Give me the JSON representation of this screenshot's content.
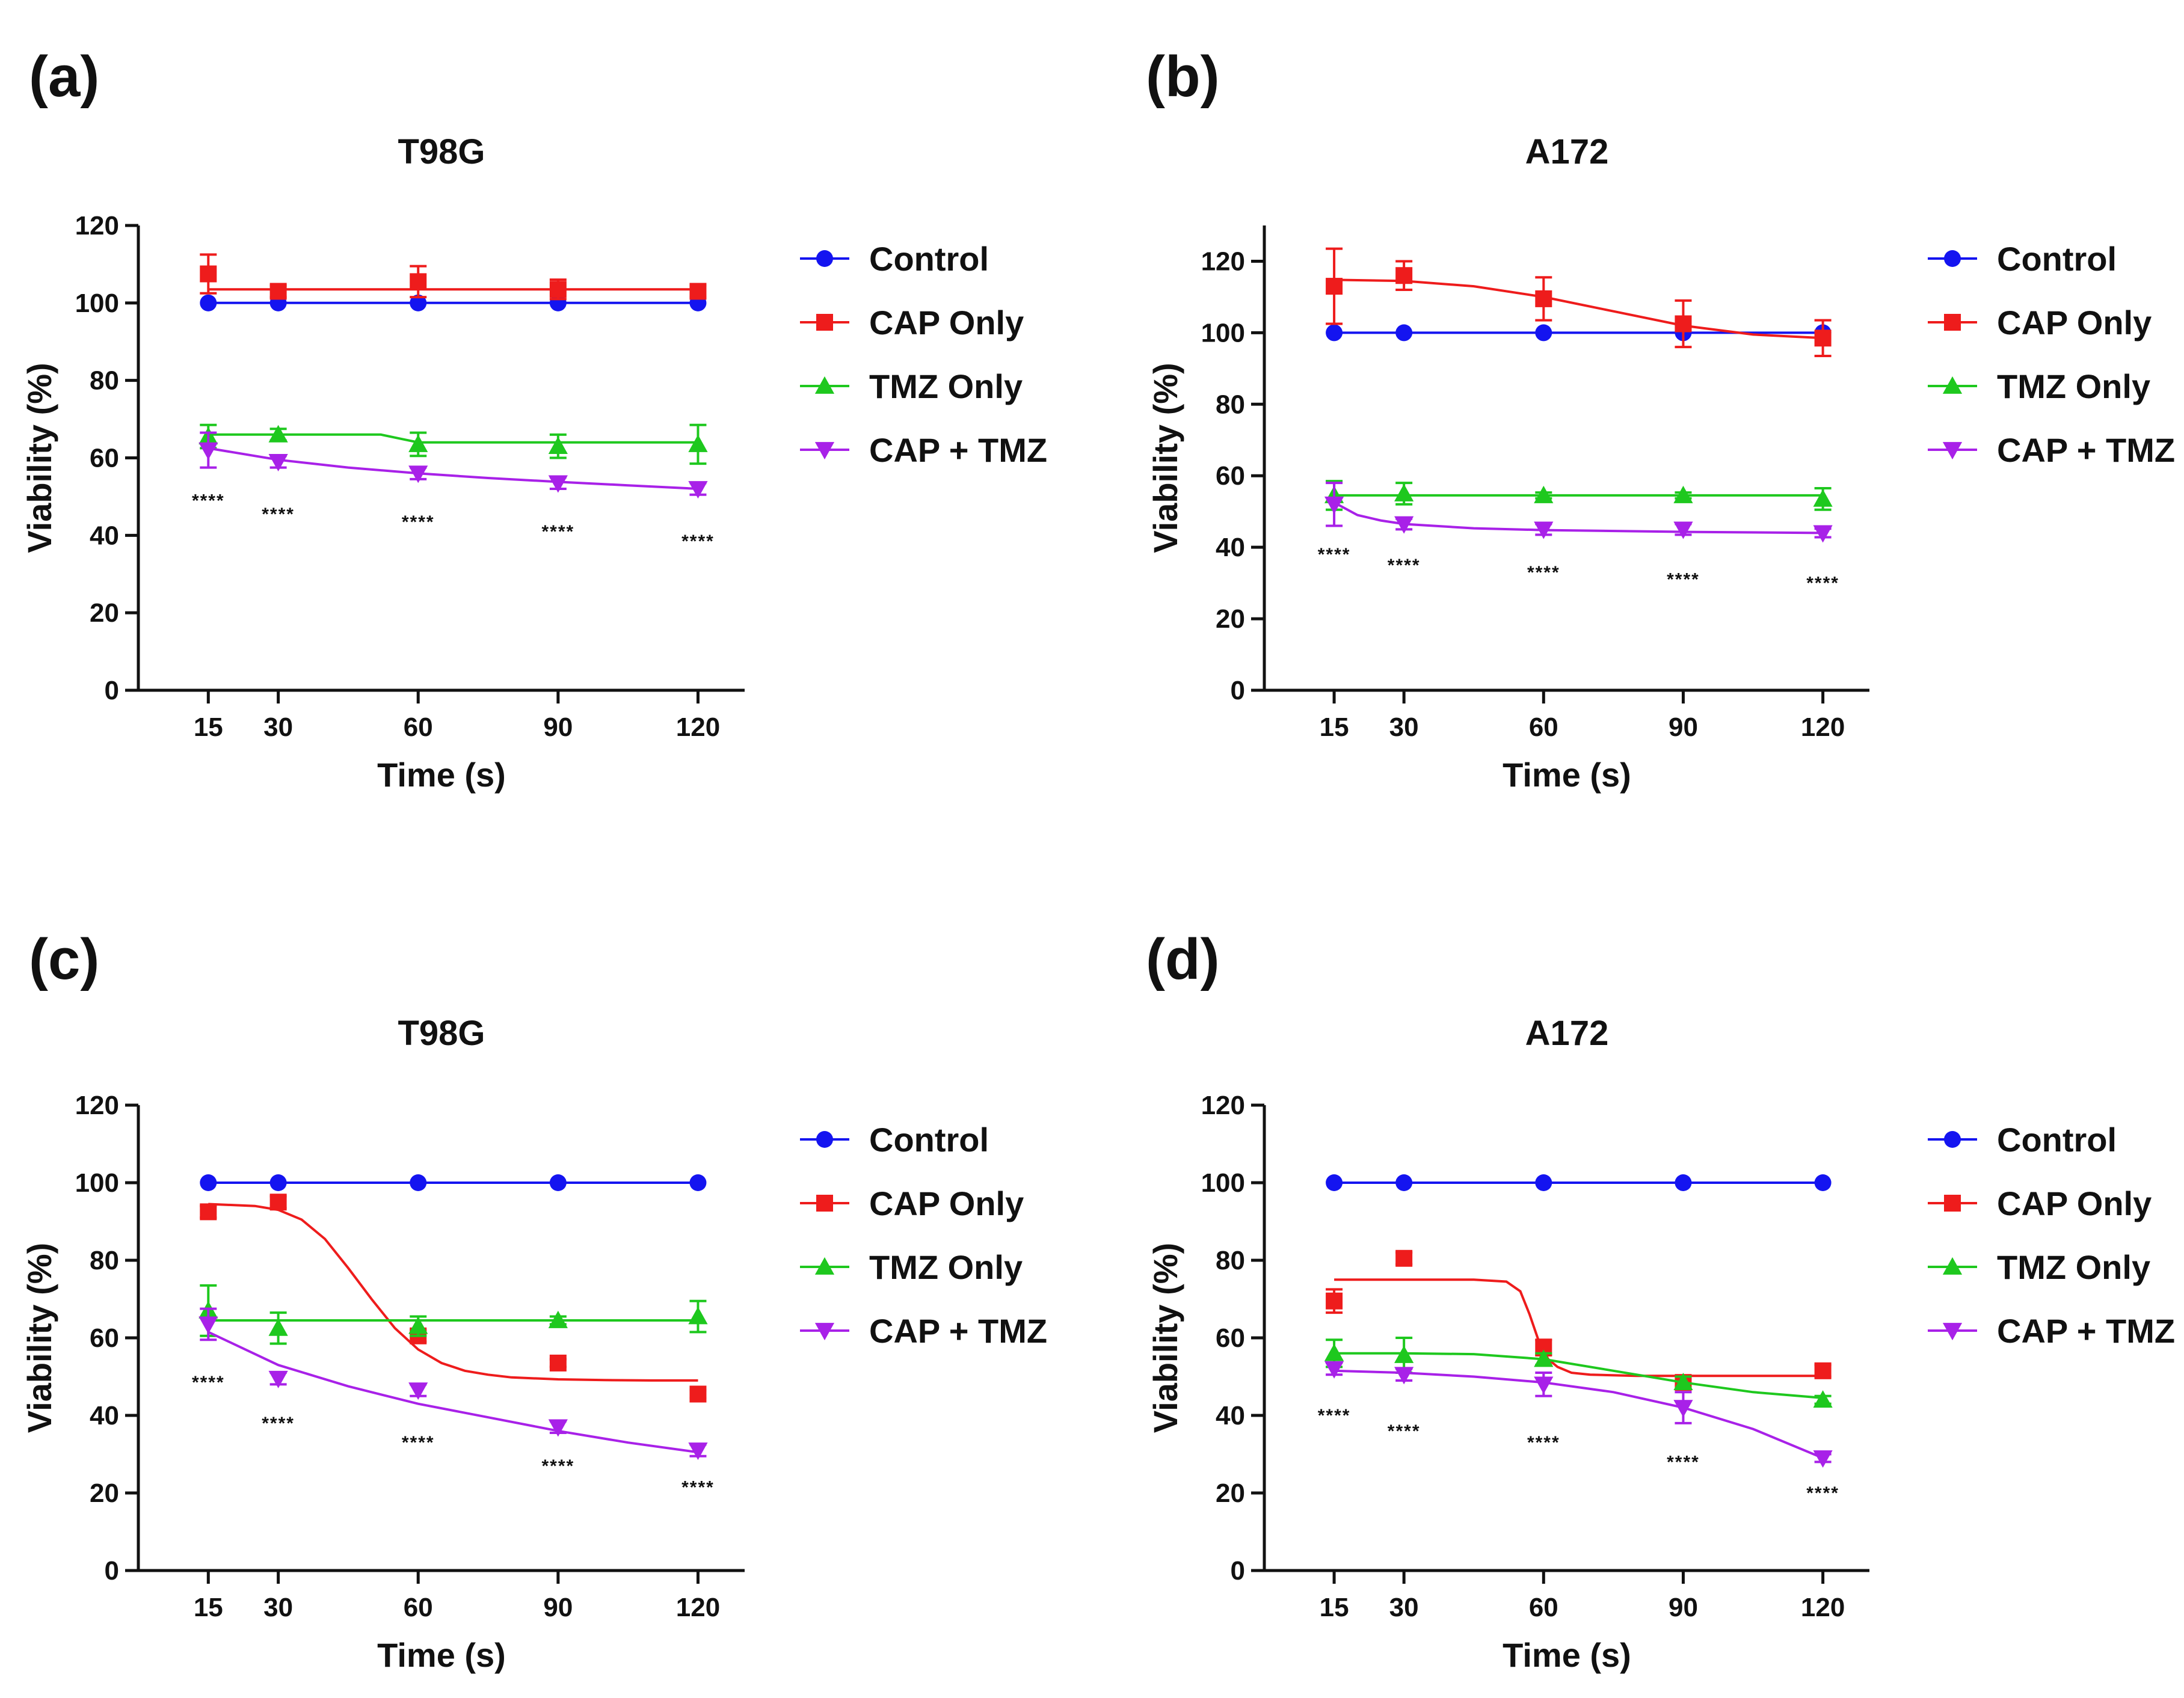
{
  "figure": {
    "panels": [
      "(a)",
      "(b)",
      "(c)",
      "(d)"
    ]
  },
  "chart_data": [
    {
      "panel": "(a)",
      "type": "line",
      "title": "T98G",
      "xlabel": "Time (s)",
      "ylabel": "Viability (%)",
      "x": [
        15,
        30,
        60,
        90,
        120
      ],
      "xticks": [
        15,
        30,
        60,
        90,
        120
      ],
      "xlim": [
        0,
        130
      ],
      "ylim": [
        0,
        120
      ],
      "yticks": [
        0,
        20,
        40,
        60,
        80,
        100,
        120
      ],
      "legend_position": "right",
      "significance": [
        "****",
        "****",
        "****",
        "****",
        "****"
      ],
      "sig_y": [
        49,
        45.5,
        43.5,
        41,
        38.5
      ],
      "series": [
        {
          "name": "Control",
          "color": "#1414f0",
          "marker": "circle",
          "values": [
            100,
            100,
            100,
            100,
            100
          ],
          "errors": [
            0,
            0,
            0,
            0,
            0
          ],
          "fit_x": [
            15,
            120
          ],
          "fit_y": [
            100,
            100
          ]
        },
        {
          "name": "CAP Only",
          "color": "#ee1c1c",
          "marker": "square",
          "values": [
            107.5,
            103,
            105.5,
            103.5,
            103
          ],
          "errors": [
            5,
            1.5,
            4,
            2.5,
            1.5
          ],
          "fit_x": [
            15,
            120
          ],
          "fit_y": [
            103.5,
            103.5
          ]
        },
        {
          "name": "TMZ Only",
          "color": "#1ec81e",
          "marker": "triangle-up",
          "values": [
            65.5,
            66,
            63.5,
            63,
            63.5
          ],
          "errors": [
            3,
            1.5,
            3,
            3,
            5
          ],
          "fit_x": [
            15,
            30,
            45,
            52,
            56,
            60,
            75,
            90,
            120
          ],
          "fit_y": [
            66,
            66,
            66,
            66,
            65,
            64,
            64,
            64,
            64
          ]
        },
        {
          "name": "CAP + TMZ",
          "color": "#a821e8",
          "marker": "triangle-down",
          "values": [
            62,
            59,
            56,
            53.5,
            52
          ],
          "errors": [
            4.5,
            1.5,
            1.5,
            1.5,
            1.5
          ],
          "fit_x": [
            15,
            30,
            45,
            60,
            75,
            90,
            105,
            120
          ],
          "fit_y": [
            62.5,
            59.5,
            57.5,
            56,
            54.8,
            53.8,
            52.9,
            52
          ]
        }
      ]
    },
    {
      "panel": "(b)",
      "type": "line",
      "title": "A172",
      "xlabel": "Time (s)",
      "ylabel": "Viability (%)",
      "x": [
        15,
        30,
        60,
        90,
        120
      ],
      "xticks": [
        15,
        30,
        60,
        90,
        120
      ],
      "xlim": [
        0,
        130
      ],
      "ylim": [
        0,
        130
      ],
      "yticks": [
        0,
        20,
        40,
        60,
        80,
        100,
        120
      ],
      "legend_position": "right",
      "significance": [
        "****",
        "****",
        "****",
        "****",
        "****"
      ],
      "sig_y": [
        38,
        35,
        33,
        31,
        30
      ],
      "series": [
        {
          "name": "Control",
          "color": "#1414f0",
          "marker": "circle",
          "values": [
            100,
            100,
            100,
            100,
            100
          ],
          "errors": [
            0,
            0,
            0,
            0,
            0
          ],
          "fit_x": [
            15,
            120
          ],
          "fit_y": [
            100,
            100
          ]
        },
        {
          "name": "CAP Only",
          "color": "#ee1c1c",
          "marker": "square",
          "values": [
            113,
            116,
            109.5,
            102.5,
            98.5
          ],
          "errors": [
            10.5,
            4,
            6,
            6.5,
            5
          ],
          "fit_x": [
            15,
            30,
            45,
            60,
            75,
            90,
            105,
            120
          ],
          "fit_y": [
            114.8,
            114.5,
            113,
            110,
            106,
            102,
            99.5,
            98.5
          ]
        },
        {
          "name": "TMZ Only",
          "color": "#1ec81e",
          "marker": "triangle-up",
          "values": [
            54.5,
            55,
            54.5,
            54.5,
            53.5
          ],
          "errors": [
            4,
            3,
            0.8,
            0.8,
            3
          ],
          "fit_x": [
            15,
            120
          ],
          "fit_y": [
            54.5,
            54.5
          ]
        },
        {
          "name": "CAP + TMZ",
          "color": "#a821e8",
          "marker": "triangle-down",
          "values": [
            52,
            46.5,
            45,
            45,
            44
          ],
          "errors": [
            6,
            1.5,
            1.5,
            1.5,
            1.2
          ],
          "fit_x": [
            15,
            20,
            25,
            30,
            45,
            60,
            90,
            120
          ],
          "fit_y": [
            52.5,
            49,
            47.5,
            46.5,
            45.3,
            44.8,
            44.3,
            44
          ]
        }
      ]
    },
    {
      "panel": "(c)",
      "type": "line",
      "title": "T98G",
      "xlabel": "Time (s)",
      "ylabel": "Viability (%)",
      "x": [
        15,
        30,
        60,
        90,
        120
      ],
      "xticks": [
        15,
        30,
        60,
        90,
        120
      ],
      "xlim": [
        0,
        130
      ],
      "ylim": [
        0,
        120
      ],
      "yticks": [
        0,
        20,
        40,
        60,
        80,
        100,
        120
      ],
      "legend_position": "right",
      "significance": [
        "****",
        "****",
        "****",
        "****",
        "****"
      ],
      "sig_y": [
        48.5,
        38,
        33,
        27,
        21.5
      ],
      "series": [
        {
          "name": "Control",
          "color": "#1414f0",
          "marker": "circle",
          "values": [
            100,
            100,
            100,
            100,
            100
          ],
          "errors": [
            0,
            0,
            0,
            0,
            0
          ],
          "fit_x": [
            15,
            120
          ],
          "fit_y": [
            100,
            100
          ]
        },
        {
          "name": "CAP Only",
          "color": "#ee1c1c",
          "marker": "square",
          "values": [
            92.5,
            95,
            60.5,
            53.5,
            45.5
          ],
          "errors": [
            1.5,
            1.5,
            1.5,
            1,
            1
          ],
          "fit_x": [
            15,
            25,
            30,
            35,
            40,
            45,
            50,
            55,
            60,
            65,
            70,
            75,
            80,
            90,
            100,
            110,
            120
          ],
          "fit_y": [
            94.5,
            94,
            93,
            90.5,
            85.5,
            78,
            70,
            62.5,
            57,
            53.5,
            51.5,
            50.5,
            49.8,
            49.3,
            49.1,
            49,
            49
          ]
        },
        {
          "name": "TMZ Only",
          "color": "#1ec81e",
          "marker": "triangle-up",
          "values": [
            67,
            62.5,
            63,
            64.5,
            65.5
          ],
          "errors": [
            6.5,
            4,
            2.5,
            1,
            4
          ],
          "fit_x": [
            15,
            120
          ],
          "fit_y": [
            64.5,
            64.5
          ]
        },
        {
          "name": "CAP + TMZ",
          "color": "#a821e8",
          "marker": "triangle-down",
          "values": [
            63.5,
            49.5,
            46.5,
            37,
            31
          ],
          "errors": [
            4,
            1.5,
            1.5,
            1.5,
            1.5
          ],
          "fit_x": [
            15,
            30,
            45,
            60,
            75,
            90,
            105,
            120
          ],
          "fit_y": [
            61.5,
            53,
            47.5,
            43,
            39.5,
            36,
            33,
            30.5
          ]
        }
      ]
    },
    {
      "panel": "(d)",
      "type": "line",
      "title": "A172",
      "xlabel": "Time (s)",
      "ylabel": "Viability (%)",
      "x": [
        15,
        30,
        60,
        90,
        120
      ],
      "xticks": [
        15,
        30,
        60,
        90,
        120
      ],
      "xlim": [
        0,
        130
      ],
      "ylim": [
        0,
        120
      ],
      "yticks": [
        0,
        20,
        40,
        60,
        80,
        100,
        120
      ],
      "legend_position": "right",
      "significance": [
        "****",
        "****",
        "****",
        "****",
        "****"
      ],
      "sig_y": [
        40,
        36,
        33,
        28,
        20
      ],
      "series": [
        {
          "name": "Control",
          "color": "#1414f0",
          "marker": "circle",
          "values": [
            100,
            100,
            100,
            100,
            100
          ],
          "errors": [
            0,
            0,
            0,
            0,
            0
          ],
          "fit_x": [
            15,
            120
          ],
          "fit_y": [
            100,
            100
          ]
        },
        {
          "name": "CAP Only",
          "color": "#ee1c1c",
          "marker": "square",
          "values": [
            69.5,
            80.5,
            57.5,
            48.5,
            51.5
          ],
          "errors": [
            3,
            1.5,
            2,
            1,
            1.5
          ],
          "fit_x": [
            15,
            45,
            52,
            55,
            57,
            59,
            61,
            63,
            66,
            70,
            80,
            120
          ],
          "fit_y": [
            75,
            75,
            74.5,
            72,
            66,
            59,
            54.5,
            52.5,
            51,
            50.5,
            50.2,
            50.2
          ]
        },
        {
          "name": "TMZ Only",
          "color": "#1ec81e",
          "marker": "triangle-up",
          "values": [
            56,
            55.5,
            54.5,
            48.5,
            44
          ],
          "errors": [
            3.5,
            4.5,
            1.5,
            1.5,
            1
          ],
          "fit_x": [
            15,
            30,
            45,
            60,
            75,
            90,
            105,
            120
          ],
          "fit_y": [
            56,
            56,
            55.8,
            54.5,
            51.5,
            48.5,
            46,
            44.5
          ]
        },
        {
          "name": "CAP + TMZ",
          "color": "#a821e8",
          "marker": "triangle-down",
          "values": [
            52,
            50.5,
            48,
            42,
            29
          ],
          "errors": [
            1.5,
            1.5,
            3,
            4,
            1
          ],
          "fit_x": [
            15,
            30,
            45,
            60,
            75,
            90,
            105,
            120
          ],
          "fit_y": [
            51.5,
            51,
            50,
            48.5,
            46,
            42,
            36.5,
            29
          ]
        }
      ]
    }
  ]
}
